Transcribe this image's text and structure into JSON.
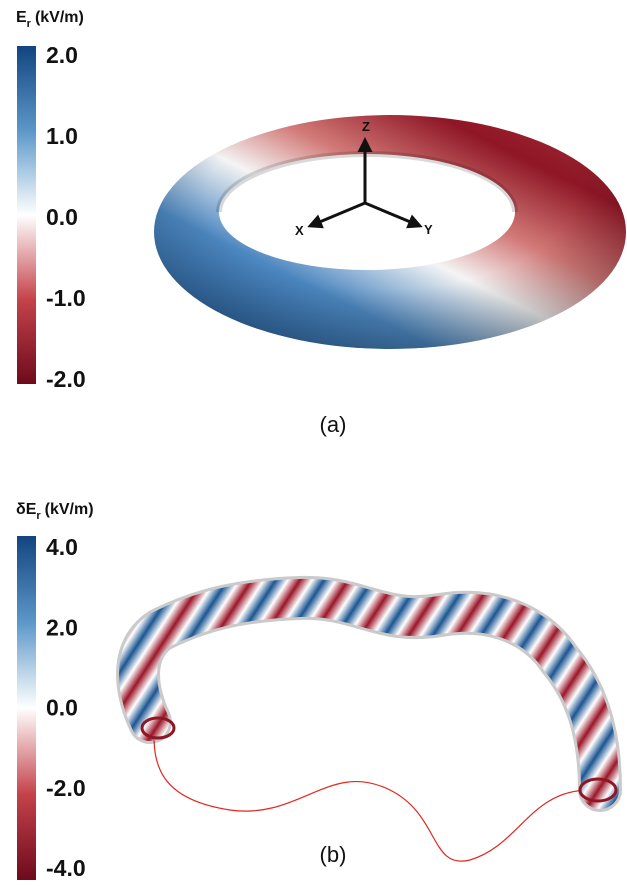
{
  "panels": [
    {
      "label": "(a)",
      "axes": {
        "x": "X",
        "y": "Y",
        "z": "Z"
      },
      "colorbar": {
        "symbol": "E",
        "subscript": "r",
        "unit": "(kV/m)",
        "lim": [
          -2,
          2
        ],
        "ticks": [
          {
            "value": 2,
            "label": "2.0"
          },
          {
            "value": 1,
            "label": "1.0"
          },
          {
            "value": 0,
            "label": "0.0"
          },
          {
            "value": -1,
            "label": "-1.0"
          },
          {
            "value": -2,
            "label": "-2.0"
          }
        ],
        "colors": [
          "#6e0a1c",
          "#c4434a",
          "#ffffff",
          "#5b97c9",
          "#12457f"
        ]
      }
    },
    {
      "label": "(b)",
      "colorbar": {
        "symbol": "δE",
        "subscript": "r",
        "unit": "(kV/m)",
        "lim": [
          -4,
          4
        ],
        "ticks": [
          {
            "value": 4,
            "label": "4.0"
          },
          {
            "value": 2,
            "label": "2.0"
          },
          {
            "value": 0,
            "label": "0.0"
          },
          {
            "value": -2,
            "label": "-2.0"
          },
          {
            "value": -4,
            "label": "-4.0"
          }
        ],
        "colors": [
          "#6e0a1c",
          "#c4434a",
          "#ffffff",
          "#5b97c9",
          "#12457f"
        ]
      }
    }
  ]
}
